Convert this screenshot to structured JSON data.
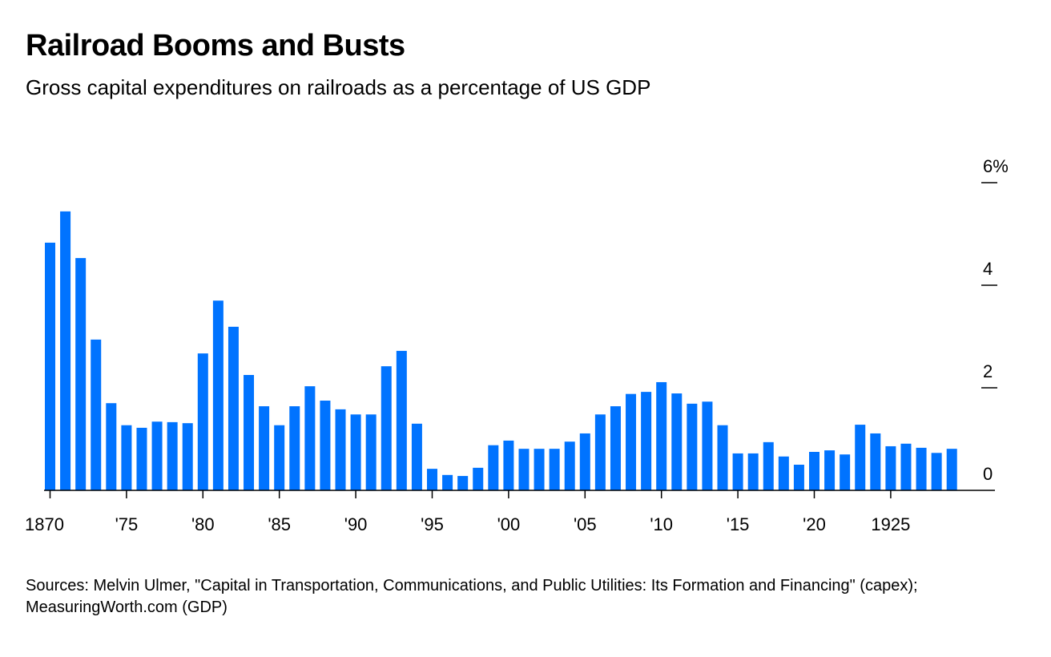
{
  "chart_data": {
    "type": "bar",
    "title": "Railroad Booms and Busts",
    "subtitle": "Gross capital expenditures on railroads as a percentage of US GDP",
    "source": "Sources: Melvin Ulmer, \"Capital in Transportation, Communications, and Public Utilities: Its Formation and Financing\" (capex); MeasuringWorth.com (GDP)",
    "xlabel": "",
    "ylabel": "",
    "ylim": [
      0,
      6
    ],
    "bar_color": "#0073ff",
    "y_ticks": [
      {
        "value": 0,
        "label": "0"
      },
      {
        "value": 2,
        "label": "2"
      },
      {
        "value": 4,
        "label": "4"
      },
      {
        "value": 6,
        "label": "6%"
      }
    ],
    "x_ticks": [
      {
        "year": 1870,
        "label": "1870"
      },
      {
        "year": 1875,
        "label": "'75"
      },
      {
        "year": 1880,
        "label": "'80"
      },
      {
        "year": 1885,
        "label": "'85"
      },
      {
        "year": 1890,
        "label": "'90"
      },
      {
        "year": 1895,
        "label": "'95"
      },
      {
        "year": 1900,
        "label": "'00"
      },
      {
        "year": 1905,
        "label": "'05"
      },
      {
        "year": 1910,
        "label": "'10"
      },
      {
        "year": 1915,
        "label": "'15"
      },
      {
        "year": 1920,
        "label": "'20"
      },
      {
        "year": 1925,
        "label": "1925"
      }
    ],
    "x_start": 1870,
    "values": [
      4.83,
      5.44,
      4.53,
      2.94,
      1.7,
      1.27,
      1.22,
      1.34,
      1.33,
      1.31,
      2.67,
      3.7,
      3.19,
      2.25,
      1.64,
      1.27,
      1.64,
      2.03,
      1.75,
      1.58,
      1.48,
      1.48,
      2.42,
      2.72,
      1.3,
      0.42,
      0.3,
      0.28,
      0.44,
      0.88,
      0.97,
      0.81,
      0.81,
      0.81,
      0.95,
      1.11,
      1.48,
      1.64,
      1.88,
      1.92,
      2.11,
      1.89,
      1.69,
      1.73,
      1.27,
      0.72,
      0.72,
      0.94,
      0.66,
      0.5,
      0.75,
      0.78,
      0.7,
      1.28,
      1.11,
      0.86,
      0.91,
      0.83,
      0.73,
      0.81
    ]
  }
}
